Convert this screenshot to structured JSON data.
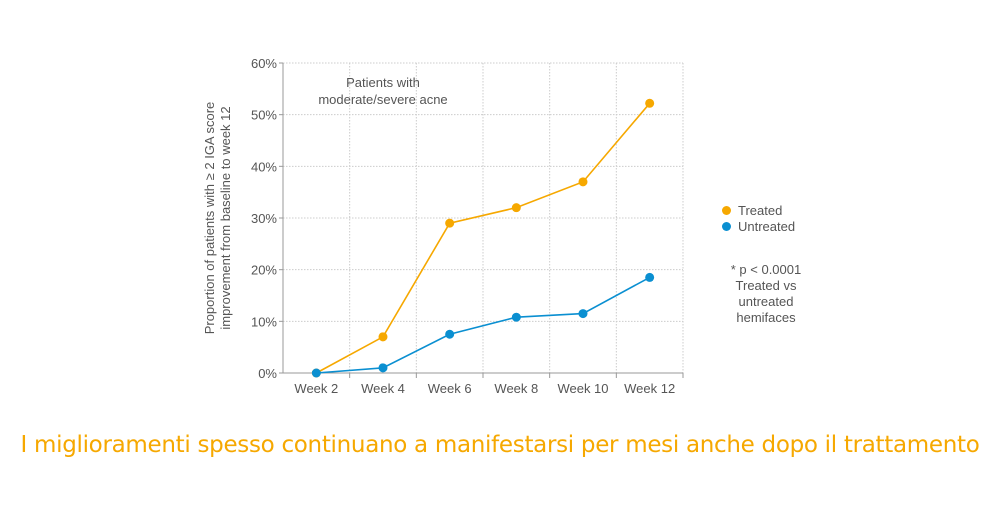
{
  "chart_data": {
    "type": "line",
    "title": "",
    "annotation": [
      "Patients with",
      "moderate/severe acne"
    ],
    "ylabel": [
      "Proportion of patients with ≥ 2 IGA score",
      "improvement from baseline to week 12"
    ],
    "xlabel": "",
    "categories": [
      "Week 2",
      "Week 4",
      "Week 6",
      "Week 8",
      "Week 10",
      "Week 12"
    ],
    "yticks": [
      "0%",
      "10%",
      "20%",
      "30%",
      "40%",
      "50%",
      "60%"
    ],
    "ylim": [
      0,
      60
    ],
    "grid": true,
    "legend_position": "right",
    "series": [
      {
        "name": "Treated",
        "color": "#f6a800",
        "values": [
          0,
          7,
          29,
          32,
          37,
          52.2
        ]
      },
      {
        "name": "Untreated",
        "color": "#0a8fd1",
        "values": [
          0,
          1,
          7.5,
          10.8,
          11.5,
          18.5
        ]
      }
    ],
    "footnote": [
      "* p < 0.0001",
      "Treated vs",
      "untreated",
      "hemifaces"
    ]
  },
  "caption": "I miglioramenti spesso continuano a manifestarsi per mesi anche dopo il trattamento"
}
